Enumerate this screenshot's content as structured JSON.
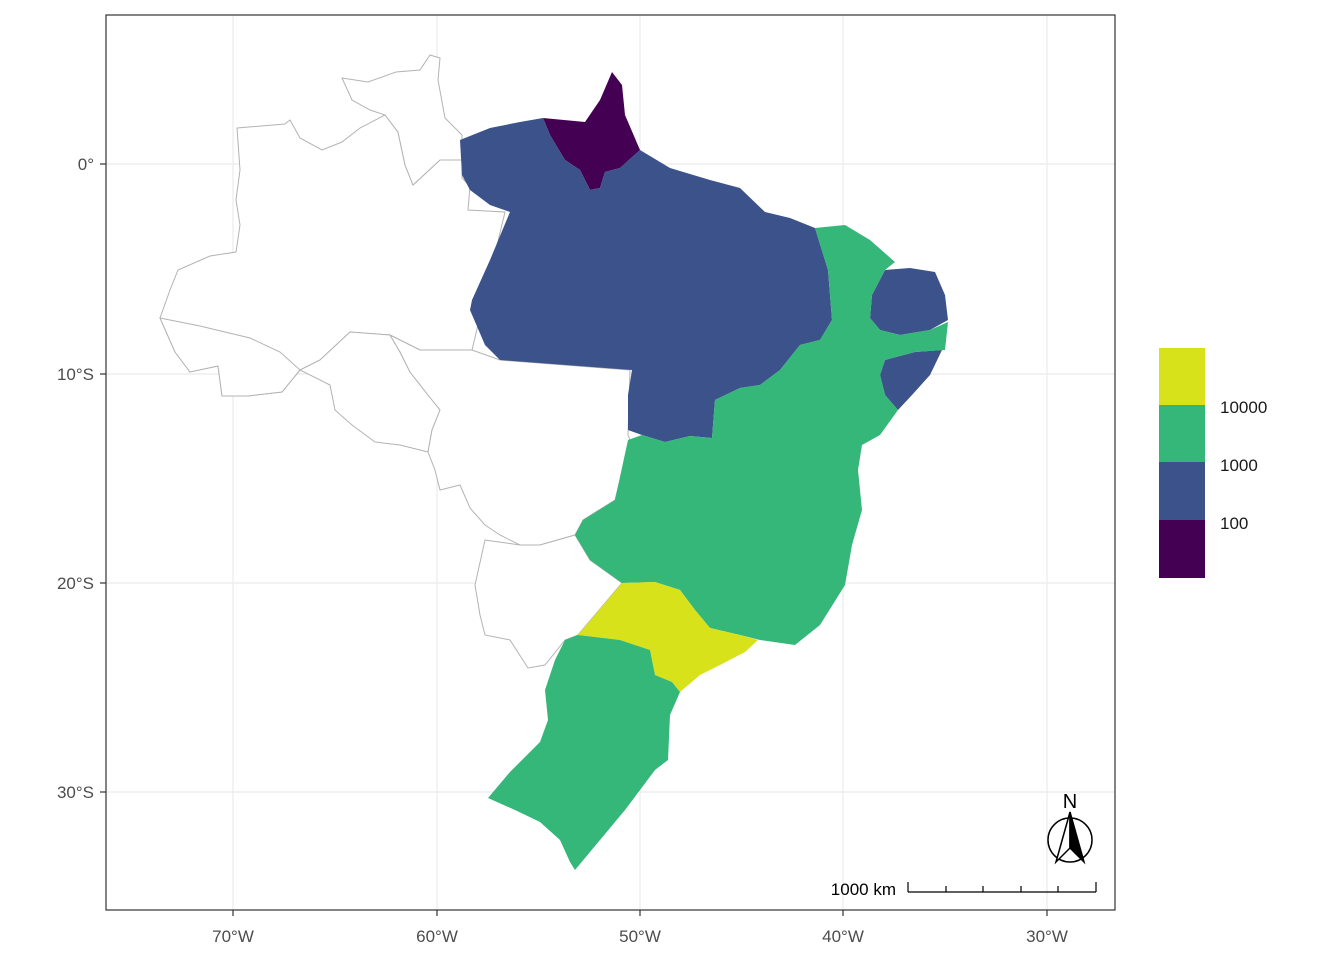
{
  "axes": {
    "x_ticks": [
      "70°W",
      "60°W",
      "50°W",
      "40°W",
      "30°W"
    ],
    "y_ticks": [
      "0°",
      "10°S",
      "20°S",
      "30°S"
    ]
  },
  "colors": {
    "c100": "#440154",
    "c1000": "#3b528b",
    "c10000": "#35b779",
    "c100000": "#d8e21a",
    "empty": "#ffffff",
    "border": "#b3b3b3"
  },
  "legend": {
    "labels": [
      "10000",
      "1000",
      "100"
    ],
    "swatches": [
      "#d8e21a",
      "#35b779",
      "#3b528b",
      "#440154"
    ]
  },
  "scale_bar": {
    "label": "1000 km"
  },
  "north_arrow": {
    "label": "N"
  }
}
